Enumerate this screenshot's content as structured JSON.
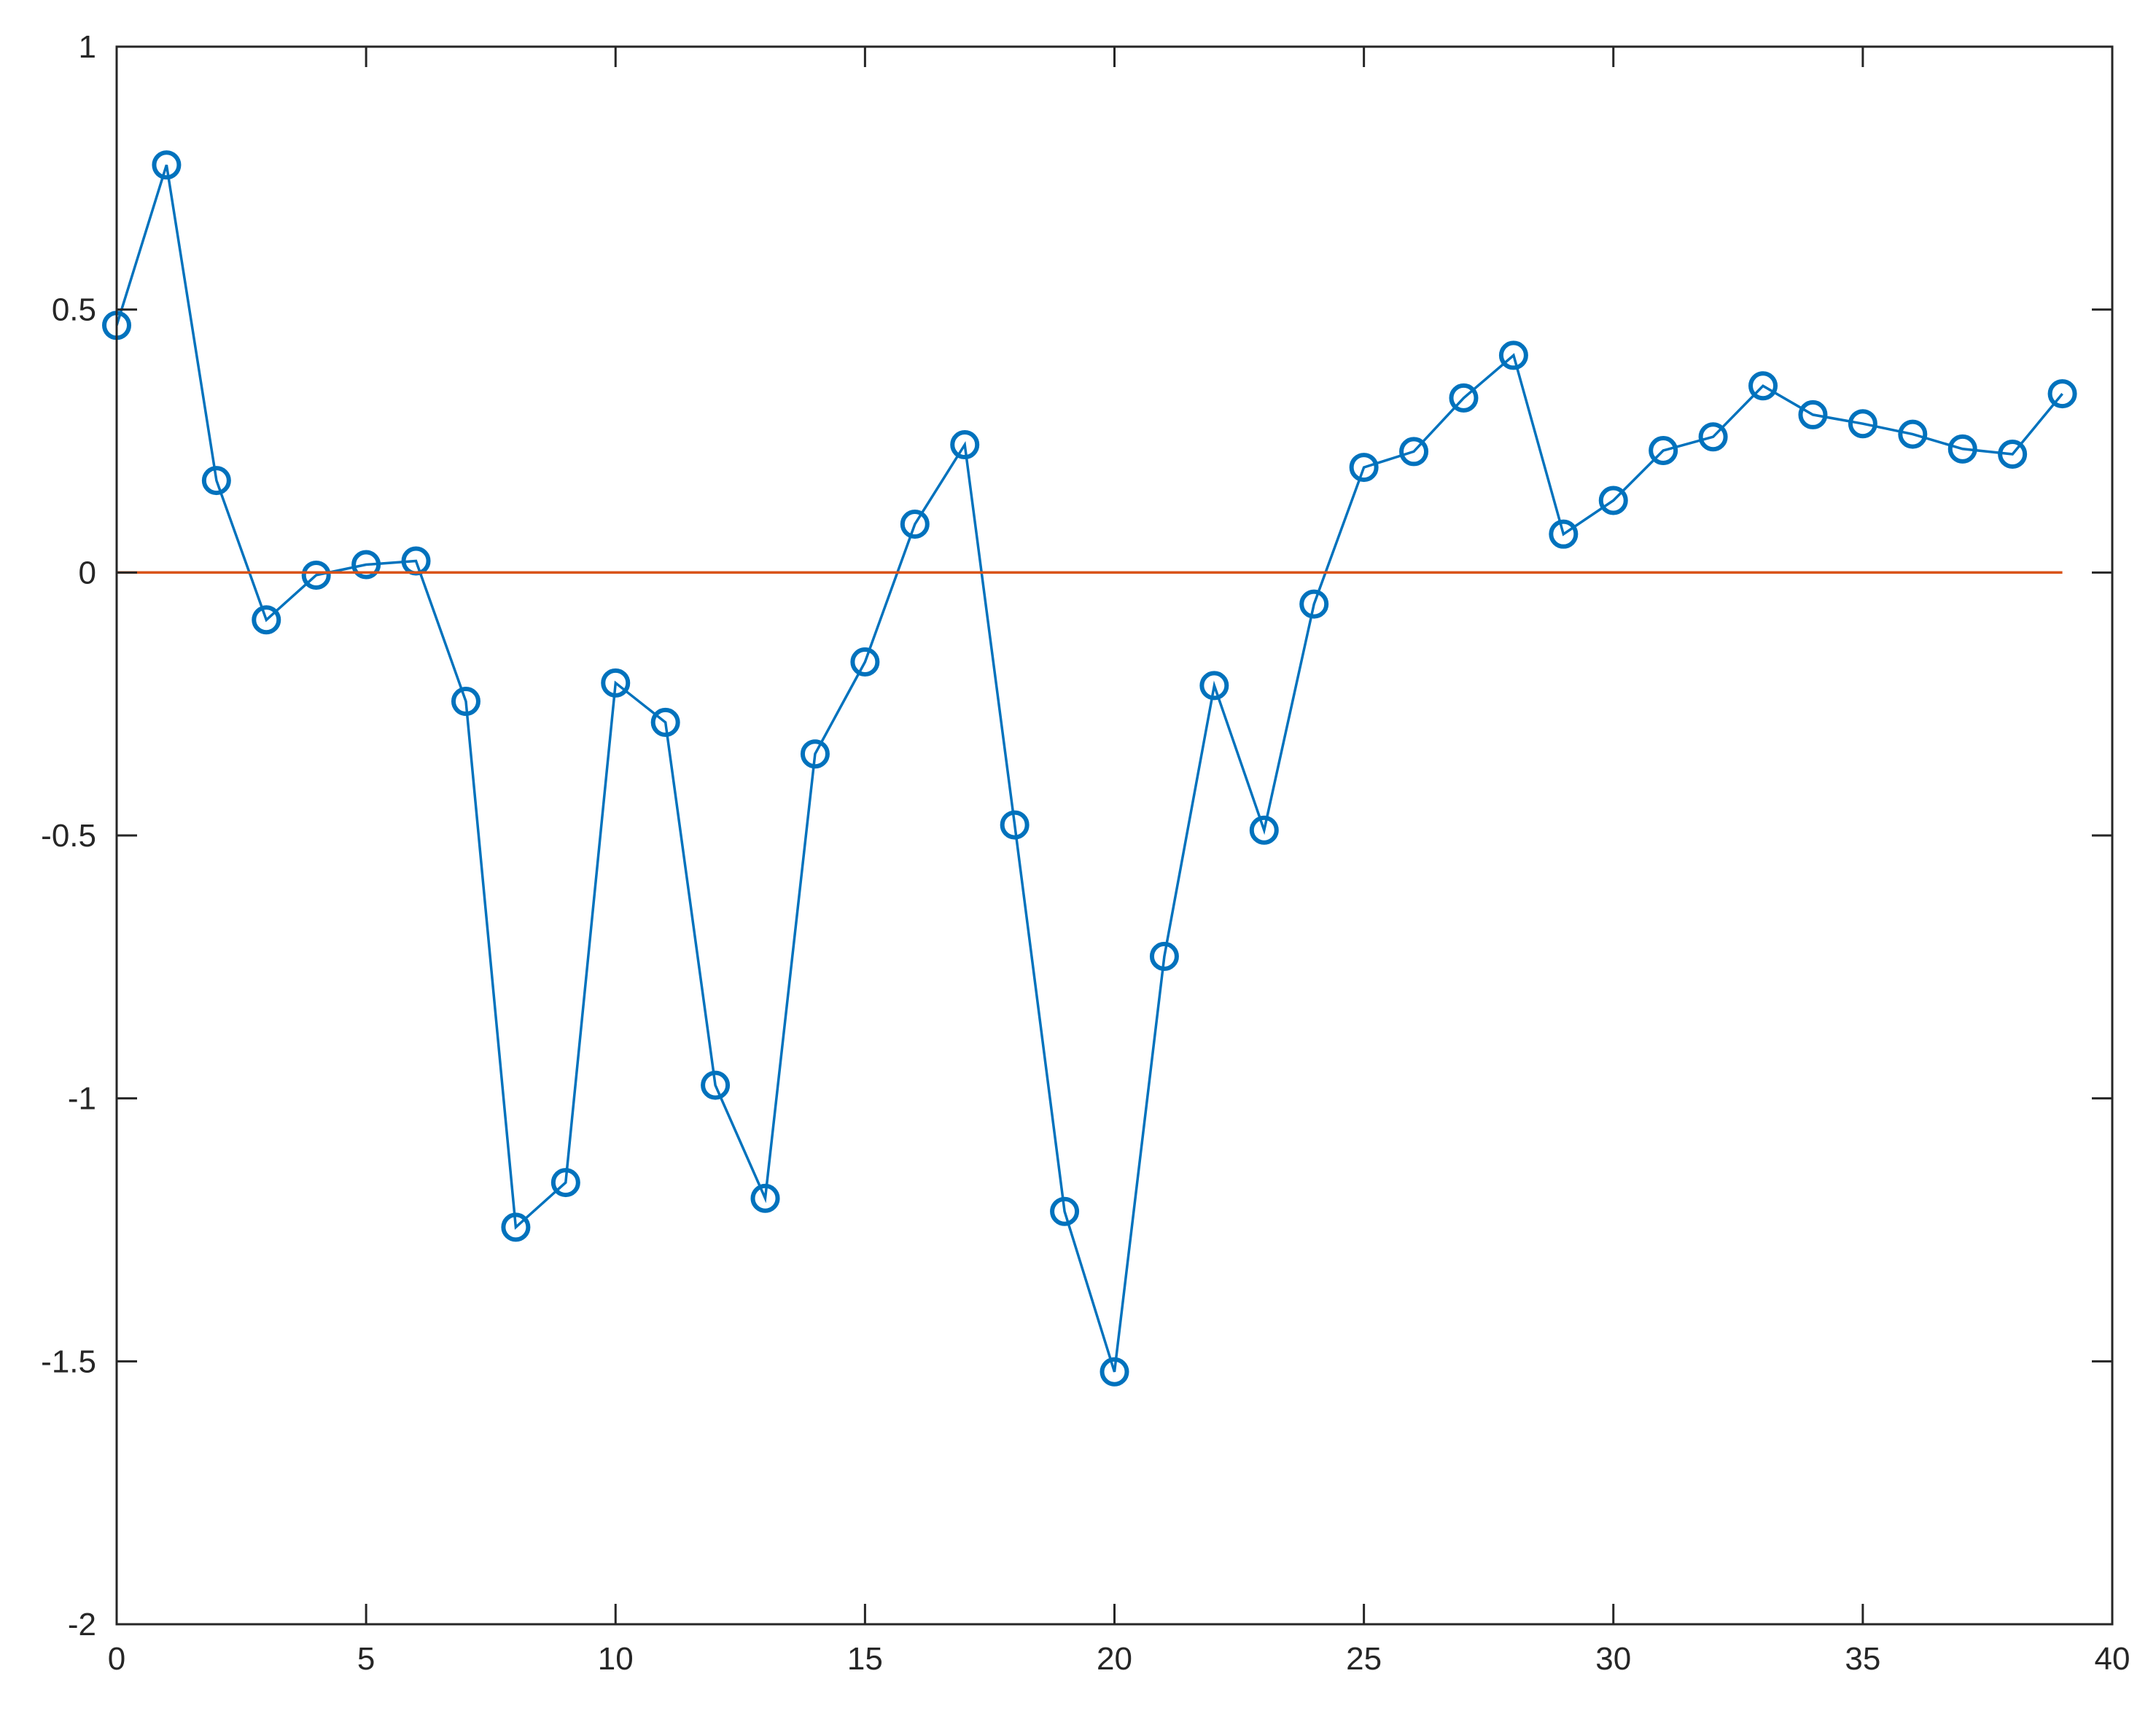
{
  "chart_data": {
    "type": "line",
    "title": "",
    "xlabel": "",
    "ylabel": "",
    "xlim": [
      0,
      40
    ],
    "ylim": [
      -2,
      1
    ],
    "xticks": [
      0,
      5,
      10,
      15,
      20,
      25,
      30,
      35,
      40
    ],
    "yticks": [
      1,
      0.5,
      0,
      -0.5,
      -1,
      -1.5,
      -2
    ],
    "xtick_labels": [
      "0",
      "5",
      "10",
      "15",
      "20",
      "25",
      "30",
      "35",
      "40"
    ],
    "ytick_labels": [
      "1",
      "0.5",
      "0",
      "-0.5",
      "-1",
      "-1.5",
      "-2"
    ],
    "grid": false,
    "series": [
      {
        "color": "#0072BD",
        "marker": "circle",
        "x": [
          0,
          1,
          2,
          3,
          4,
          5,
          6,
          7,
          8,
          9,
          10,
          11,
          12,
          13,
          14,
          15,
          16,
          17,
          18,
          19,
          20,
          21,
          22,
          23,
          24,
          25,
          26,
          27,
          28,
          29,
          30,
          31,
          32,
          33,
          34,
          35,
          36,
          37,
          38,
          39
        ],
        "values": [
          0.47,
          0.775,
          0.175,
          -0.09,
          -0.005,
          0.015,
          0.022,
          -0.245,
          -1.245,
          -1.16,
          -0.21,
          -0.285,
          -0.975,
          -1.19,
          -0.345,
          -0.17,
          0.092,
          0.243,
          -0.48,
          -1.215,
          -1.52,
          -0.73,
          -0.215,
          -0.49,
          -0.06,
          0.2,
          0.23,
          0.332,
          0.413,
          0.073,
          0.137,
          0.232,
          0.258,
          0.355,
          0.3,
          0.283,
          0.263,
          0.235,
          0.225,
          0.34
        ]
      },
      {
        "color": "#D95319",
        "marker": "none",
        "x": [
          0,
          39
        ],
        "values": [
          0,
          0
        ]
      }
    ]
  }
}
